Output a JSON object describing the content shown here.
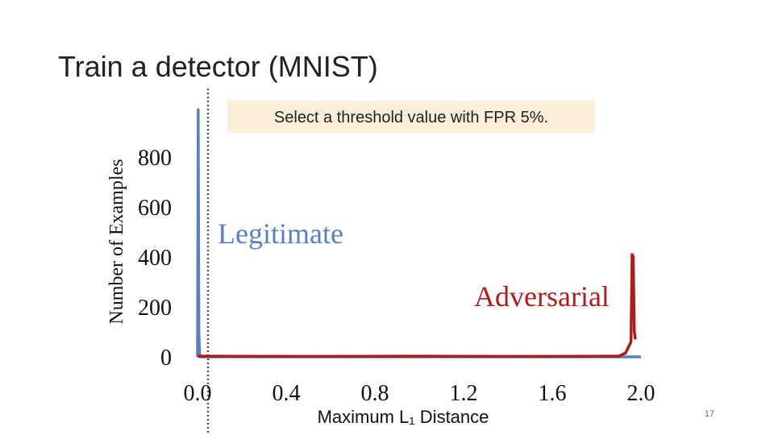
{
  "title": "Train a detector (MNIST)",
  "slide_number": "17",
  "chart_data": {
    "type": "line",
    "y_label": "Number of Examples",
    "x_label": "Maximum L₁ Distance",
    "annotations": [
      "Select a threshold value with FPR 5%."
    ],
    "xlim": [
      0,
      2.0
    ],
    "ylim": [
      0,
      1000
    ],
    "xticks": [
      {
        "value": 0,
        "label": "0.0"
      },
      0.4,
      0.8,
      1.2,
      1.6,
      {
        "value": 2,
        "label": "2.0"
      }
    ],
    "yticks": [
      0,
      200,
      400,
      600,
      800
    ],
    "series": [
      {
        "name": "Legitimate",
        "color": "#5a7fc2",
        "x": [
          0,
          0.003,
          0.006,
          0.01,
          2.0
        ],
        "values": [
          0,
          990,
          100,
          0,
          0
        ]
      },
      {
        "name": "Adversarial",
        "color": "#b01c1c",
        "x": [
          0.0,
          0.5,
          1.0,
          1.5,
          1.9,
          1.93,
          1.955,
          1.96,
          1.965,
          1.97,
          1.975
        ],
        "values": [
          3,
          2,
          3,
          2,
          3,
          15,
          60,
          410,
          400,
          100,
          70
        ]
      }
    ]
  }
}
